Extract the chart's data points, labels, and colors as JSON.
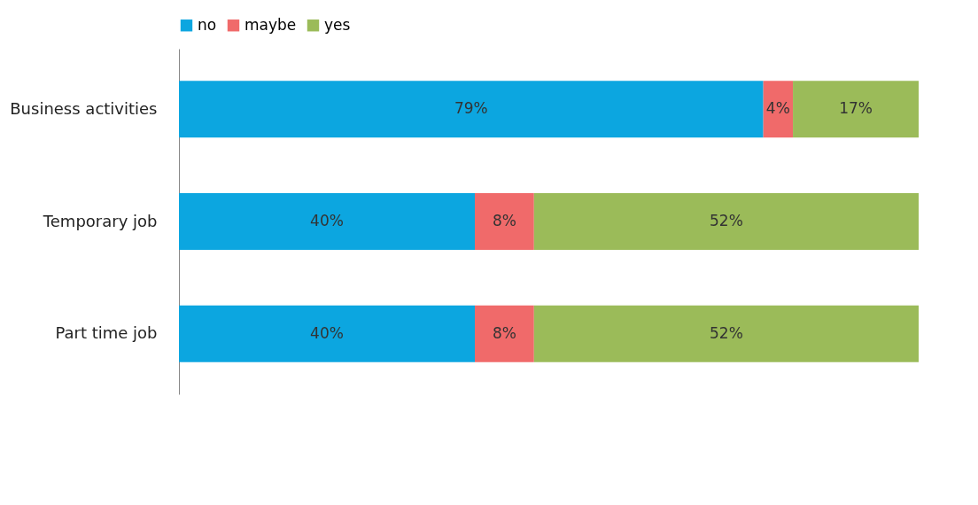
{
  "chart_data": {
    "type": "bar",
    "orientation": "horizontal",
    "stacked": true,
    "legend": "top",
    "tick_labels": "y",
    "grid": false,
    "categories": [
      "Business activities",
      "Temporary job",
      "Part time job"
    ],
    "series": [
      {
        "name": "no",
        "color": "#0ca6e0",
        "values": [
          79,
          40,
          40
        ],
        "value_labels": [
          "79%",
          "40%",
          "40%"
        ]
      },
      {
        "name": "maybe",
        "color": "#f06a6a",
        "values": [
          4,
          8,
          8
        ],
        "value_labels": [
          "4%",
          "8%",
          "8%"
        ]
      },
      {
        "name": "yes",
        "color": "#9bbb59",
        "values": [
          17,
          52,
          52
        ],
        "value_labels": [
          "17%",
          "52%",
          "52%"
        ]
      }
    ]
  }
}
